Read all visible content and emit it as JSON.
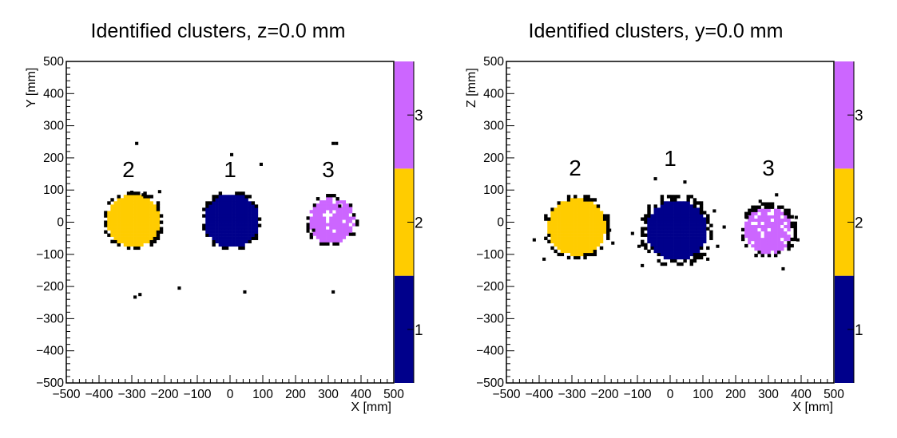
{
  "chart_data": [
    {
      "type": "heatmap",
      "title": "Identified clusters, z=0.0 mm",
      "xlabel": "X [mm]",
      "ylabel": "Y [mm]",
      "xlim": [
        -500,
        500
      ],
      "ylim": [
        -500,
        500
      ],
      "x_ticks": [
        "−500",
        "−400",
        "−300",
        "−200",
        "−100",
        "0",
        "100",
        "200",
        "300",
        "400",
        "500"
      ],
      "y_ticks": [
        "−500",
        "−400",
        "−300",
        "−200",
        "−100",
        "0",
        "100",
        "200",
        "300",
        "400",
        "500"
      ],
      "colorbar": {
        "range": [
          0.5,
          3.5
        ],
        "ticks": [
          "1",
          "2",
          "3"
        ],
        "bands": [
          {
            "id": 1,
            "color": "#00008b"
          },
          {
            "id": 2,
            "color": "#ffcc00"
          },
          {
            "id": 3,
            "color": "#cc66ff"
          }
        ]
      },
      "clusters": [
        {
          "label": "2",
          "color": "#ffcc00",
          "cx": -300,
          "cy": 0,
          "r": 80,
          "halo": 95
        },
        {
          "label": "1",
          "color": "#00008b",
          "cx": 0,
          "cy": 0,
          "r": 85,
          "halo": 95
        },
        {
          "label": "3",
          "color": "#cc66ff",
          "cx": 305,
          "cy": 0,
          "r": 70,
          "halo": 82
        }
      ],
      "cluster_labels": [
        {
          "text": "2",
          "x": -310,
          "y": 140
        },
        {
          "text": "1",
          "x": 0,
          "y": 140
        },
        {
          "text": "3",
          "x": 300,
          "y": 140
        }
      ],
      "noise_points": [
        [
          -290,
          240
        ],
        [
          -295,
          -238
        ],
        [
          -280,
          -230
        ],
        [
          -160,
          -210
        ],
        [
          0,
          205
        ],
        [
          40,
          -222
        ],
        [
          90,
          175
        ],
        [
          310,
          240
        ],
        [
          320,
          240
        ],
        [
          310,
          -222
        ],
        [
          -270,
          80
        ],
        [
          -305,
          88
        ],
        [
          -220,
          90
        ],
        [
          250,
          -30
        ],
        [
          330,
          45
        ]
      ]
    },
    {
      "type": "heatmap",
      "title": "Identified clusters, y=0.0 mm",
      "xlabel": "X [mm]",
      "ylabel": "Z [mm]",
      "xlim": [
        -500,
        500
      ],
      "ylim": [
        -500,
        500
      ],
      "x_ticks": [
        "−500",
        "−400",
        "−300",
        "−200",
        "−100",
        "0",
        "100",
        "200",
        "300",
        "400",
        "500"
      ],
      "y_ticks": [
        "−500",
        "−400",
        "−300",
        "−200",
        "−100",
        "0",
        "100",
        "200",
        "300",
        "400",
        "500"
      ],
      "colorbar": {
        "range": [
          0.5,
          3.5
        ],
        "ticks": [
          "1",
          "2",
          "3"
        ],
        "bands": [
          {
            "id": 1,
            "color": "#00008b"
          },
          {
            "id": 2,
            "color": "#ffcc00"
          },
          {
            "id": 3,
            "color": "#cc66ff"
          }
        ]
      },
      "clusters": [
        {
          "label": "2",
          "color": "#ffcc00",
          "cx": -290,
          "cy": -20,
          "r": 88,
          "halo": 105
        },
        {
          "label": "1",
          "color": "#00008b",
          "cx": 15,
          "cy": -30,
          "r": 92,
          "halo": 115
        },
        {
          "label": "3",
          "color": "#cc66ff",
          "cx": 295,
          "cy": -30,
          "r": 72,
          "halo": 88
        }
      ],
      "cluster_labels": [
        {
          "text": "2",
          "x": -290,
          "y": 145
        },
        {
          "text": "1",
          "x": 0,
          "y": 175
        },
        {
          "text": "3",
          "x": 300,
          "y": 145
        }
      ],
      "noise_points": [
        [
          -420,
          -60
        ],
        [
          -390,
          -120
        ],
        [
          -180,
          -70
        ],
        [
          -190,
          -30
        ],
        [
          -120,
          -40
        ],
        [
          -100,
          -80
        ],
        [
          -90,
          -140
        ],
        [
          140,
          -80
        ],
        [
          130,
          30
        ],
        [
          110,
          -120
        ],
        [
          160,
          -20
        ],
        [
          -50,
          130
        ],
        [
          40,
          120
        ],
        [
          270,
          60
        ],
        [
          340,
          -150
        ],
        [
          320,
          80
        ],
        [
          380,
          10
        ],
        [
          385,
          -60
        ],
        [
          230,
          10
        ]
      ]
    }
  ]
}
